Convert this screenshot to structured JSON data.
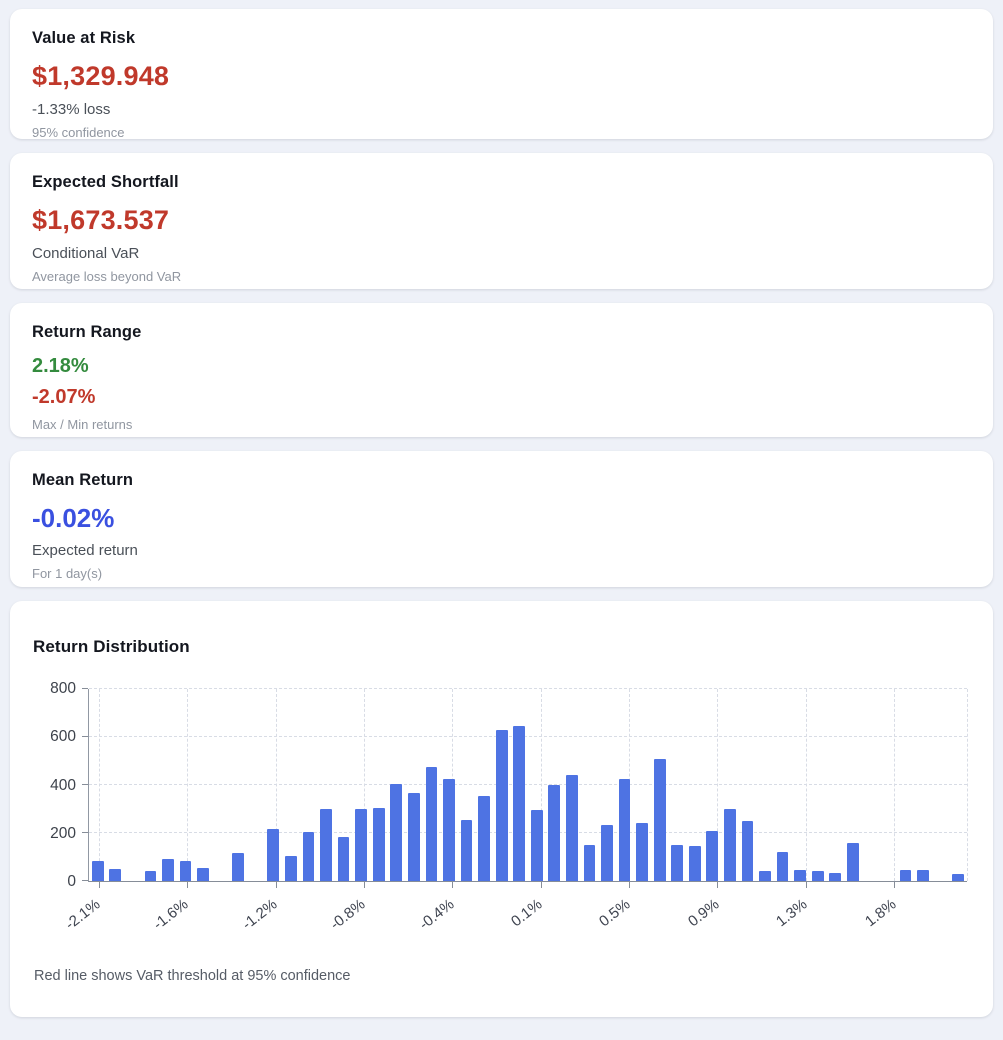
{
  "colors": {
    "value_negative": "#c0392b",
    "value_positive": "#348b3e",
    "value_neutral": "#3a50e0",
    "bar": "#4e73e3",
    "page_background": "#eef1f8",
    "gridline": "#d8dce5"
  },
  "var_card": {
    "title": "Value at Risk",
    "amount": "$1,329.948",
    "subtitle": "-1.33% loss",
    "note": "95% confidence"
  },
  "shortfall_card": {
    "title": "Expected Shortfall",
    "amount": "$1,673.537",
    "subtitle": "Conditional VaR",
    "note": "Average loss beyond VaR"
  },
  "range_card": {
    "title": "Return Range",
    "max_value": "2.18%",
    "min_value": "-2.07%",
    "note": "Max / Min returns"
  },
  "mean_card": {
    "title": "Mean Return",
    "value": "-0.02%",
    "subtitle": "Expected return",
    "note": "For 1 day(s)"
  },
  "distribution_card": {
    "title": "Return Distribution",
    "footnote": "Red line shows VaR threshold at 95% confidence"
  },
  "chart_data": {
    "type": "bar",
    "title": "Return Distribution",
    "xlabel": "",
    "ylabel": "",
    "grid": true,
    "ylim": [
      0,
      800
    ],
    "y_ticks": [
      0,
      200,
      400,
      600,
      800
    ],
    "x_tick_labels": [
      "-2.1%",
      "-1.6%",
      "-1.2%",
      "-0.8%",
      "-0.4%",
      "0.1%",
      "0.5%",
      "0.9%",
      "1.3%",
      "1.8%"
    ],
    "bin_count": 50,
    "values": [
      85,
      48,
      0,
      42,
      92,
      85,
      53,
      0,
      115,
      0,
      215,
      105,
      205,
      300,
      183,
      300,
      305,
      405,
      365,
      475,
      425,
      255,
      355,
      630,
      645,
      295,
      400,
      440,
      150,
      235,
      425,
      240,
      510,
      150,
      145,
      210,
      300,
      250,
      40,
      120,
      45,
      40,
      35,
      160,
      0,
      0,
      45,
      45,
      0,
      30
    ],
    "bar_color": "#4e73e3",
    "legend": null
  }
}
